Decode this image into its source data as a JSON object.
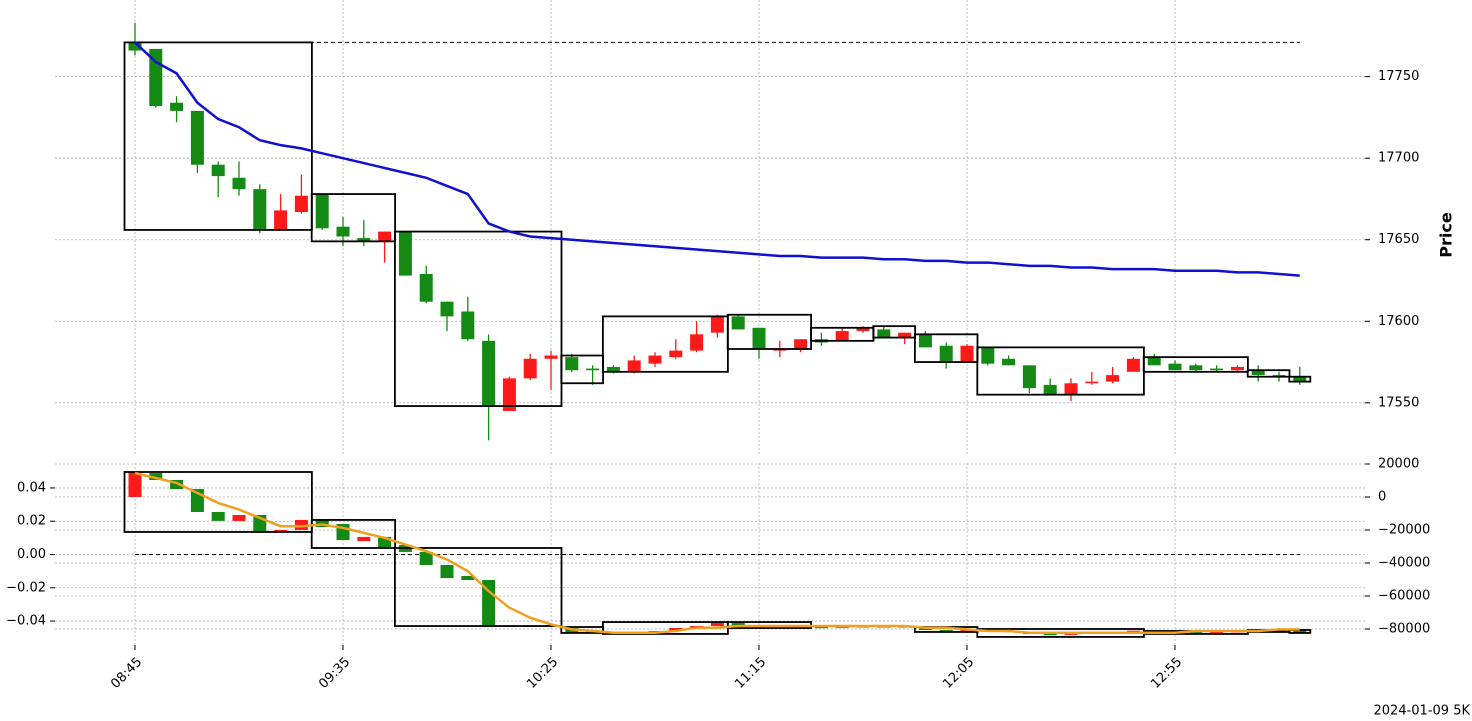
{
  "chart_data": [
    {
      "type": "candlestick",
      "ylabel": "Price",
      "ylim": [
        17518,
        17797
      ],
      "yticks": [
        17550,
        17600,
        17650,
        17700,
        17750
      ],
      "grid": true,
      "up_color": "#ff1a1a",
      "down_color": "#138a13",
      "open": [
        17771,
        17767,
        17734,
        17729,
        17696,
        17688,
        17681,
        17656,
        17667,
        17678,
        17658,
        17651,
        17649,
        17655,
        17629,
        17612,
        17606,
        17588,
        17545,
        17565,
        17577,
        17578,
        17571,
        17572,
        17569,
        17574,
        17578,
        17582,
        17593,
        17603,
        17596,
        17582,
        17583,
        17589,
        17588,
        17594,
        17595,
        17590,
        17592,
        17585,
        17575,
        17584,
        17577,
        17573,
        17561,
        17555,
        17562,
        17563,
        17569,
        17578,
        17574,
        17573,
        17571,
        17570,
        17570,
        17567,
        17566
      ],
      "high": [
        17783,
        17767,
        17738,
        17729,
        17698,
        17698,
        17684,
        17678,
        17690,
        17678,
        17664,
        17662,
        17655,
        17655,
        17634,
        17612,
        17615,
        17592,
        17566,
        17580,
        17582,
        17580,
        17573,
        17573,
        17579,
        17581,
        17589,
        17600,
        17604,
        17604,
        17596,
        17588,
        17589,
        17593,
        17596,
        17597,
        17597,
        17593,
        17594,
        17587,
        17586,
        17584,
        17579,
        17573,
        17565,
        17565,
        17569,
        17572,
        17578,
        17580,
        17576,
        17574,
        17573,
        17573,
        17573,
        17569,
        17572
      ],
      "low": [
        17763,
        17731,
        17722,
        17691,
        17676,
        17677,
        17654,
        17656,
        17666,
        17656,
        17646,
        17646,
        17636,
        17628,
        17611,
        17594,
        17588,
        17527,
        17545,
        17564,
        17558,
        17569,
        17561,
        17568,
        17568,
        17572,
        17577,
        17581,
        17590,
        17595,
        17577,
        17578,
        17581,
        17585,
        17588,
        17593,
        17590,
        17586,
        17584,
        17571,
        17575,
        17573,
        17573,
        17556,
        17555,
        17551,
        17561,
        17562,
        17569,
        17573,
        17570,
        17569,
        17569,
        17569,
        17563,
        17563,
        17561
      ],
      "close": [
        17766,
        17732,
        17729,
        17696,
        17689,
        17681,
        17656,
        17668,
        17677,
        17657,
        17652,
        17649,
        17655,
        17628,
        17612,
        17603,
        17589,
        17548,
        17565,
        17577,
        17579,
        17570,
        17570,
        17569,
        17576,
        17579,
        17582,
        17592,
        17603,
        17595,
        17583,
        17583,
        17589,
        17587,
        17594,
        17596,
        17590,
        17593,
        17584,
        17575,
        17585,
        17574,
        17573,
        17559,
        17555,
        17562,
        17563,
        17567,
        17577,
        17573,
        17570,
        17570,
        17570,
        17572,
        17567,
        17566,
        17563
      ],
      "line": {
        "color": "#1010d0",
        "values": [
          17771,
          17759,
          17752,
          17734,
          17724,
          17719,
          17711,
          17708,
          17706,
          17703,
          17700,
          17697,
          17694,
          17691,
          17688,
          17683,
          17678,
          17660,
          17655,
          17652,
          17651,
          17650,
          17649,
          17648,
          17647,
          17646,
          17645,
          17644,
          17643,
          17642,
          17641,
          17640,
          17640,
          17639,
          17639,
          17639,
          17638,
          17638,
          17637,
          17637,
          17636,
          17636,
          17635,
          17634,
          17634,
          17633,
          17633,
          17632,
          17632,
          17632,
          17631,
          17631,
          17631,
          17630,
          17630,
          17629,
          17628
        ]
      },
      "hline": 17771,
      "boxes": [
        {
          "from": 0,
          "to": 8,
          "high": 17771,
          "low": 17656
        },
        {
          "from": 9,
          "to": 12,
          "high": 17678,
          "low": 17649
        },
        {
          "from": 13,
          "to": 20,
          "high": 17655,
          "low": 17548
        },
        {
          "from": 21,
          "to": 22,
          "high": 17579,
          "low": 17562
        },
        {
          "from": 23,
          "to": 28,
          "high": 17603,
          "low": 17569
        },
        {
          "from": 29,
          "to": 32,
          "high": 17604,
          "low": 17583
        },
        {
          "from": 33,
          "to": 35,
          "high": 17596,
          "low": 17588
        },
        {
          "from": 36,
          "to": 37,
          "high": 17597,
          "low": 17590
        },
        {
          "from": 38,
          "to": 40,
          "high": 17592,
          "low": 17575
        },
        {
          "from": 41,
          "to": 48,
          "high": 17584,
          "low": 17555
        },
        {
          "from": 49,
          "to": 53,
          "high": 17578,
          "low": 17569
        },
        {
          "from": 54,
          "to": 55,
          "high": 17570,
          "low": 17566
        },
        {
          "from": 56,
          "to": 56,
          "high": 17566,
          "low": 17563
        }
      ]
    },
    {
      "type": "candlestick",
      "axis": "y2",
      "grid": true,
      "date_label": "2024-01-09 5K",
      "categories": [
        "08:45",
        null,
        null,
        null,
        null,
        null,
        null,
        null,
        null,
        null,
        "09:35",
        null,
        null,
        null,
        null,
        null,
        null,
        null,
        null,
        null,
        "10:25",
        null,
        null,
        null,
        null,
        null,
        null,
        null,
        null,
        null,
        "11:15",
        null,
        null,
        null,
        null,
        null,
        null,
        null,
        null,
        null,
        "12:05",
        null,
        null,
        null,
        null,
        null,
        null,
        null,
        null,
        null,
        "12:55",
        null,
        null,
        null,
        null,
        null,
        null
      ],
      "ylim": [
        -0.0544,
        0.055
      ],
      "yticks": [
        0.04,
        0.02,
        {
          "value": 0,
          "label": "0.00"
        },
        {
          "value": -0.02,
          "label": "−0.02"
        },
        {
          "value": -0.04,
          "label": "−0.04"
        }
      ],
      "y2lim": [
        -89700,
        20600
      ],
      "y2ticks": [
        20000,
        0,
        {
          "value": -20000,
          "label": "−20000"
        },
        {
          "value": -40000,
          "label": "−40000"
        },
        {
          "value": -60000,
          "label": "−60000"
        },
        {
          "value": -80000,
          "label": "−80000"
        }
      ],
      "up_color": "#ff1a1a",
      "down_color": "#138a13",
      "open": [
        0,
        14500,
        10300,
        4800,
        -9100,
        -14500,
        -10900,
        -21200,
        -20000,
        -13900,
        -16400,
        -26700,
        -24200,
        -29100,
        -33300,
        -41200,
        -47900,
        -50300,
        -78500,
        -78000,
        -78000,
        -79400,
        -80600,
        -81800,
        -82400,
        -82400,
        -81200,
        -79400,
        -78200,
        -76400,
        -78200,
        -79000,
        -79400,
        -78800,
        -79000,
        -78600,
        -78400,
        -78800,
        -78800,
        -80600,
        -81800,
        -80000,
        -81200,
        -81800,
        -83000,
        -83600,
        -82400,
        -82000,
        -81600,
        -81000,
        -81400,
        -81800,
        -82000,
        -81800,
        -81400,
        -81200,
        -80600
      ],
      "close": [
        15150,
        10300,
        4800,
        -9100,
        -14500,
        -10900,
        -21200,
        -20000,
        -13900,
        -18200,
        -26100,
        -24200,
        -30300,
        -33300,
        -41200,
        -49100,
        -50300,
        -78800,
        -78000,
        -78200,
        -77600,
        -81800,
        -81800,
        -83000,
        -82000,
        -81200,
        -79400,
        -78200,
        -76400,
        -78200,
        -79400,
        -79400,
        -78800,
        -79000,
        -78600,
        -78400,
        -78800,
        -78400,
        -80600,
        -81800,
        -80000,
        -81200,
        -81800,
        -83000,
        -83600,
        -82400,
        -82000,
        -81600,
        -81000,
        -81400,
        -81800,
        -82000,
        -81800,
        -81400,
        -81200,
        -81000,
        -82400
      ],
      "line": {
        "color": "#f0a020",
        "values": [
          0.049,
          0.046,
          0.043,
          0.037,
          0.031,
          0.027,
          0.022,
          0.017,
          0.017,
          0.018,
          0.016,
          0.013,
          0.01,
          0.006,
          0.002,
          -0.003,
          -0.01,
          -0.022,
          -0.032,
          -0.038,
          -0.042,
          -0.045,
          -0.046,
          -0.047,
          -0.047,
          -0.047,
          -0.046,
          -0.044,
          -0.044,
          -0.043,
          -0.043,
          -0.043,
          -0.043,
          -0.043,
          -0.043,
          -0.043,
          -0.043,
          -0.043,
          -0.044,
          -0.044,
          -0.045,
          -0.046,
          -0.046,
          -0.047,
          -0.047,
          -0.047,
          -0.047,
          -0.047,
          -0.047,
          -0.047,
          -0.047,
          -0.046,
          -0.046,
          -0.046,
          -0.046,
          -0.045,
          -0.045
        ]
      },
      "hline": 0,
      "boxes": [
        {
          "from": 0,
          "to": 8,
          "high": 15150,
          "low": -21200
        },
        {
          "from": 9,
          "to": 12,
          "high": -13900,
          "low": -30900
        },
        {
          "from": 13,
          "to": 20,
          "high": -30900,
          "low": -78200
        },
        {
          "from": 21,
          "to": 22,
          "high": -78800,
          "low": -82400
        },
        {
          "from": 23,
          "to": 28,
          "high": -75800,
          "low": -83000
        },
        {
          "from": 29,
          "to": 32,
          "high": -75800,
          "low": -79400
        },
        {
          "from": 38,
          "to": 40,
          "high": -78800,
          "low": -81800
        },
        {
          "from": 41,
          "to": 48,
          "high": -80000,
          "low": -84800
        },
        {
          "from": 49,
          "to": 53,
          "high": -81200,
          "low": -83000
        },
        {
          "from": 54,
          "to": 55,
          "high": -80600,
          "low": -81800
        },
        {
          "from": 56,
          "to": 56,
          "high": -80600,
          "low": -82400
        }
      ]
    }
  ]
}
